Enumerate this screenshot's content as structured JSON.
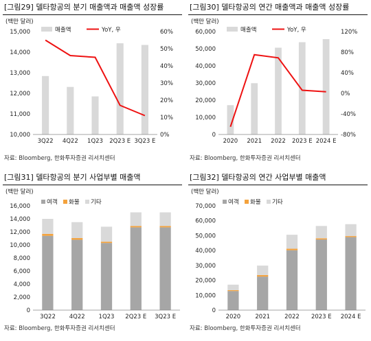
{
  "charts": [
    {
      "title": "[그림29]  델타항공의 분기 매출액과 매출액 성장률",
      "source": "자료: Bloomberg, 한화투자증권 리서치센터",
      "unit": "(백만 달러)",
      "legend": [
        "매출액",
        "YoY, 우"
      ]
    },
    {
      "title": "[그림30]  델타항공의 연간 매출액과 매출액 성장률",
      "source": "자료: Bloomberg, 한화투자증권 리서치센터",
      "unit": "(백만 달러)",
      "legend": [
        "매출액",
        "YoY, 우"
      ]
    },
    {
      "title": "[그림31]  델타항공의 분기 사업부별 매출액",
      "source": "자료: Bloomberg, 한화투자증권 리서치센터",
      "unit": "(백만 달러)",
      "legend": [
        "여객",
        "화물",
        "기타"
      ]
    },
    {
      "title": "[그림32]  델타항공의 연간 사업부별 매출액",
      "source": "자료: Bloomberg, 한화투자증권 리서치센터",
      "unit": "(백만 달러)",
      "legend": [
        "여객",
        "화물",
        "기타"
      ]
    }
  ],
  "colors": {
    "bar": "#d9d9d9",
    "line": "#ee1111",
    "passenger": "#a6a6a6",
    "cargo": "#f4a23c",
    "other": "#d9d9d9"
  },
  "chart_data": [
    {
      "type": "bar",
      "categories": [
        "3Q22",
        "4Q22",
        "1Q23",
        "2Q23 E",
        "3Q23 E"
      ],
      "series": [
        {
          "name": "매출액",
          "type": "bar",
          "axis": "left",
          "values": [
            12840,
            12310,
            11850,
            14430,
            14350
          ]
        },
        {
          "name": "YoY, 우",
          "type": "line",
          "axis": "right",
          "values": [
            55,
            46,
            45,
            17,
            11
          ]
        }
      ],
      "y_left": {
        "min": 10000,
        "max": 15000,
        "ticks": [
          "10,000",
          "11,000",
          "12,000",
          "13,000",
          "14,000",
          "15,000"
        ]
      },
      "y_right": {
        "min": 0,
        "max": 60,
        "ticks": [
          "0%",
          "10%",
          "20%",
          "30%",
          "40%",
          "50%",
          "60%"
        ]
      },
      "legend_position": "top"
    },
    {
      "type": "bar",
      "categories": [
        "2020",
        "2021",
        "2022",
        "2023 E",
        "2024 E"
      ],
      "series": [
        {
          "name": "매출액",
          "type": "bar",
          "axis": "left",
          "values": [
            17100,
            29900,
            50600,
            53800,
            55600
          ]
        },
        {
          "name": "YoY, 우",
          "type": "line",
          "axis": "right",
          "values": [
            -65,
            75,
            69,
            6,
            3
          ]
        }
      ],
      "y_left": {
        "min": 0,
        "max": 60000,
        "ticks": [
          "0",
          "10,000",
          "20,000",
          "30,000",
          "40,000",
          "50,000",
          "60,000"
        ]
      },
      "y_right": {
        "min": -80,
        "max": 120,
        "ticks": [
          "-80%",
          "-40%",
          "0%",
          "40%",
          "80%",
          "120%"
        ]
      },
      "legend_position": "top"
    },
    {
      "type": "bar",
      "stacked": true,
      "categories": [
        "3Q22",
        "4Q22",
        "1Q23",
        "2Q23 E",
        "3Q23 E"
      ],
      "series": [
        {
          "name": "여객",
          "values": [
            11400,
            10800,
            10300,
            12700,
            12700
          ]
        },
        {
          "name": "화물",
          "values": [
            300,
            250,
            200,
            200,
            200
          ]
        },
        {
          "name": "기타",
          "values": [
            2300,
            2450,
            2300,
            2100,
            2100
          ]
        }
      ],
      "y_left": {
        "min": 0,
        "max": 16000,
        "ticks": [
          "0",
          "2,000",
          "4,000",
          "6,000",
          "8,000",
          "10,000",
          "12,000",
          "14,000",
          "16,000"
        ]
      },
      "legend_position": "top"
    },
    {
      "type": "bar",
      "stacked": true,
      "categories": [
        "2020",
        "2021",
        "2022",
        "2023 E",
        "2024 E"
      ],
      "series": [
        {
          "name": "여객",
          "values": [
            12800,
            22500,
            40200,
            47400,
            49000
          ]
        },
        {
          "name": "화물",
          "values": [
            600,
            1000,
            1000,
            800,
            700
          ]
        },
        {
          "name": "기타",
          "values": [
            3700,
            6400,
            9400,
            8300,
            8000
          ]
        }
      ],
      "y_left": {
        "min": 0,
        "max": 70000,
        "ticks": [
          "0",
          "10,000",
          "20,000",
          "30,000",
          "40,000",
          "50,000",
          "60,000",
          "70,000"
        ]
      },
      "legend_position": "top"
    }
  ]
}
